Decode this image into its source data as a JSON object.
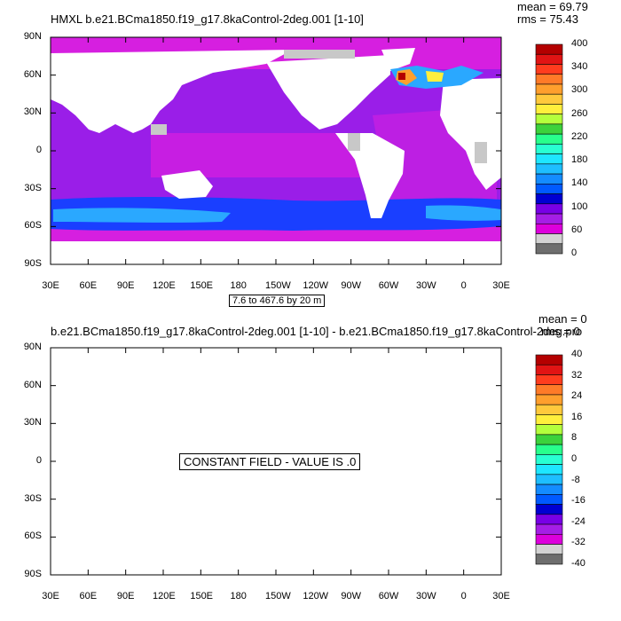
{
  "panel1": {
    "title": "HMXL b.e21.BCma1850.f19_g17.8kaControl-2deg.001 [1-10]",
    "mean": "mean = 69.79",
    "rms": "rms = 75.43",
    "contour_info": "7.6 to 467.6 by 20 m",
    "colorbar_labels": [
      "400",
      "340",
      "300",
      "260",
      "220",
      "180",
      "140",
      "100",
      "60",
      "0"
    ],
    "colorbar_colors": [
      "#b40000",
      "#e11414",
      "#ff3c1e",
      "#ff7a28",
      "#ff9f2d",
      "#ffc93c",
      "#ffef3c",
      "#b4ff3c",
      "#3cd23c",
      "#28ff8c",
      "#28ffd2",
      "#1ee6ff",
      "#1ebeff",
      "#148cff",
      "#005aff",
      "#0000d2",
      "#7800e6",
      "#a51ee6",
      "#dc00dc",
      "#d3d3d3",
      "#6e6e6e"
    ]
  },
  "panel2": {
    "title": "b.e21.BCma1850.f19_g17.8kaControl-2deg.001 [1-10] - b.e21.BCma1850.f19_g17.8kaControl-2deg.pro",
    "mean": "mean = 0",
    "rms": "rms = 0",
    "message": "CONSTANT FIELD - VALUE IS .0",
    "colorbar_labels": [
      "40",
      "32",
      "24",
      "16",
      "8",
      "0",
      "-8",
      "-16",
      "-24",
      "-32",
      "-40"
    ],
    "colorbar_colors": [
      "#b40000",
      "#e11414",
      "#ff3c1e",
      "#ff7a28",
      "#ff9f2d",
      "#ffc93c",
      "#ffef3c",
      "#b4ff3c",
      "#3cd23c",
      "#28ff8c",
      "#28ffd2",
      "#1ee6ff",
      "#1ebeff",
      "#148cff",
      "#005aff",
      "#0000d2",
      "#7800e6",
      "#a51ee6",
      "#dc00dc",
      "#d3d3d3",
      "#6e6e6e"
    ]
  },
  "lat_labels": [
    "90N",
    "60N",
    "30N",
    "0",
    "30S",
    "60S",
    "90S"
  ],
  "lon_labels": [
    "30E",
    "60E",
    "90E",
    "120E",
    "150E",
    "180",
    "150W",
    "120W",
    "90W",
    "60W",
    "30W",
    "0",
    "30E"
  ],
  "colors": {
    "ocean_base": "#9a1ee8",
    "ocean_magenta": "#d61fe0",
    "ocean_blue": "#1a3fff",
    "ocean_lightblue": "#2aa8ff",
    "land": "#ffffff",
    "ice_gray": "#c8c8c8"
  }
}
